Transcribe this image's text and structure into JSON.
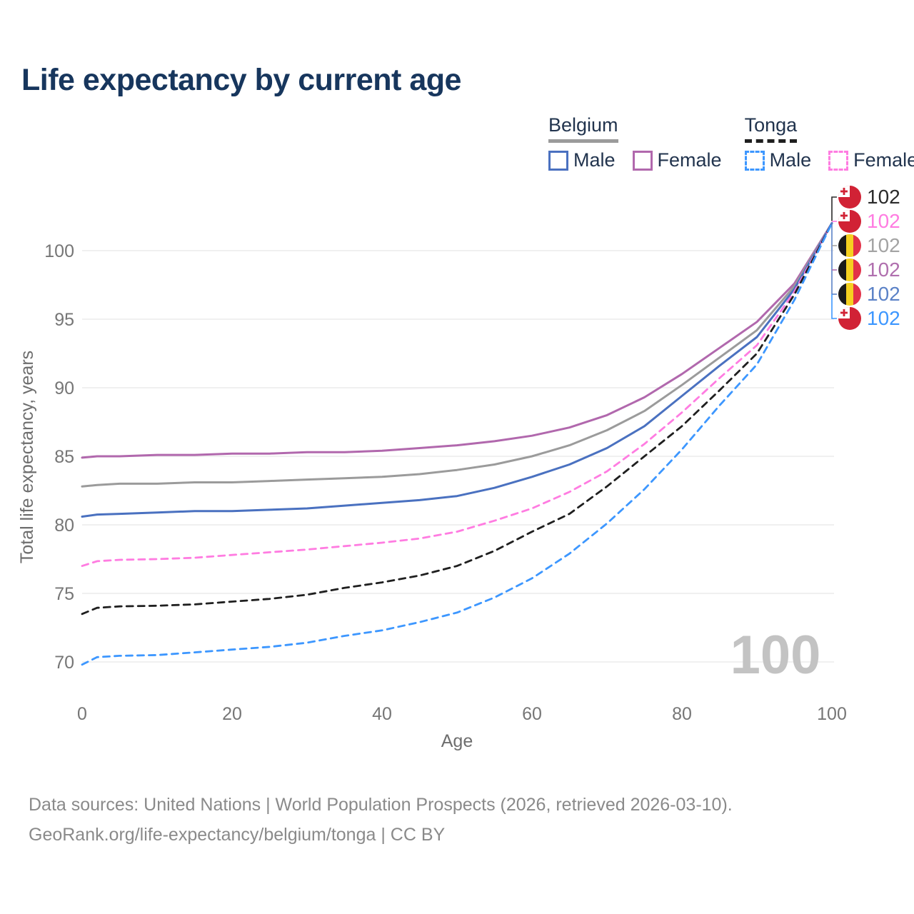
{
  "title": "Life expectancy by current age",
  "legend": {
    "groups": [
      {
        "label": "Belgium",
        "underline_color": "#9b9b9b",
        "underline_style": "solid",
        "items": [
          {
            "label": "Male",
            "color": "#4a71c0",
            "dashed": false
          },
          {
            "label": "Female",
            "color": "#b168ad",
            "dashed": false
          }
        ]
      },
      {
        "label": "Tonga",
        "underline_color": "#1f1f1f",
        "underline_style": "dashed",
        "items": [
          {
            "label": "Male",
            "color": "#3d97ff",
            "dashed": true
          },
          {
            "label": "Female",
            "color": "#ff7ce1",
            "dashed": true
          }
        ]
      }
    ]
  },
  "chart_data": {
    "type": "line",
    "title": "Life expectancy by current age",
    "xlabel": "Age",
    "ylabel": "Total life expectancy, years",
    "xlim": [
      0,
      100
    ],
    "ylim": [
      68,
      103
    ],
    "grid": "horizontal",
    "legend_position": "top-right",
    "xticks": [
      0,
      20,
      40,
      60,
      80,
      100
    ],
    "yticks": [
      100,
      95,
      90,
      85,
      80,
      75,
      70
    ],
    "x": [
      0,
      2,
      5,
      10,
      15,
      20,
      25,
      30,
      35,
      40,
      45,
      50,
      55,
      60,
      65,
      70,
      75,
      80,
      85,
      90,
      95,
      100
    ],
    "series": [
      {
        "name": "Belgium Female",
        "country": "Belgium",
        "sex": "Female",
        "color": "#b168ad",
        "dash": "solid",
        "values": [
          84.9,
          85.0,
          85.0,
          85.1,
          85.1,
          85.2,
          85.2,
          85.3,
          85.3,
          85.4,
          85.6,
          85.8,
          86.1,
          86.5,
          87.1,
          88.0,
          89.3,
          91.0,
          92.9,
          94.8,
          97.6,
          102
        ]
      },
      {
        "name": "Belgium Both sexes",
        "country": "Belgium",
        "sex": "Both",
        "color": "#9b9b9b",
        "dash": "solid",
        "values": [
          82.8,
          82.9,
          83.0,
          83.0,
          83.1,
          83.1,
          83.2,
          83.3,
          83.4,
          83.5,
          83.7,
          84.0,
          84.4,
          85.0,
          85.8,
          86.9,
          88.3,
          90.2,
          92.2,
          94.2,
          97.4,
          102
        ]
      },
      {
        "name": "Belgium Male",
        "country": "Belgium",
        "sex": "Male",
        "color": "#4a71c0",
        "dash": "solid",
        "values": [
          80.6,
          80.75,
          80.8,
          80.9,
          81.0,
          81.0,
          81.1,
          81.2,
          81.4,
          81.6,
          81.8,
          82.1,
          82.7,
          83.5,
          84.4,
          85.6,
          87.2,
          89.4,
          91.6,
          93.7,
          97.2,
          102
        ]
      },
      {
        "name": "Tonga Female",
        "country": "Tonga",
        "sex": "Female",
        "color": "#ff7ce1",
        "dash": "dashed",
        "values": [
          77.0,
          77.35,
          77.45,
          77.5,
          77.6,
          77.8,
          78.0,
          78.2,
          78.45,
          78.7,
          79.0,
          79.5,
          80.3,
          81.2,
          82.4,
          83.9,
          85.9,
          88.2,
          90.7,
          93.1,
          97.0,
          102
        ]
      },
      {
        "name": "Tonga Both sexes",
        "country": "Tonga",
        "sex": "Both",
        "color": "#1f1f1f",
        "dash": "dashed",
        "values": [
          73.5,
          73.95,
          74.05,
          74.1,
          74.2,
          74.4,
          74.6,
          74.9,
          75.4,
          75.8,
          76.3,
          77.0,
          78.1,
          79.5,
          80.8,
          82.8,
          85.0,
          87.2,
          89.8,
          92.5,
          96.8,
          102
        ]
      },
      {
        "name": "Tonga Male",
        "country": "Tonga",
        "sex": "Male",
        "color": "#3d97ff",
        "dash": "dashed",
        "values": [
          69.8,
          70.35,
          70.45,
          70.5,
          70.7,
          70.9,
          71.1,
          71.4,
          71.9,
          72.3,
          72.9,
          73.6,
          74.7,
          76.1,
          77.9,
          80.1,
          82.6,
          85.5,
          88.7,
          91.7,
          96.4,
          102
        ]
      }
    ],
    "end_labels": [
      {
        "series": "Tonga Both sexes",
        "country": "Tonga",
        "value": "102",
        "color": "#2b2b2b"
      },
      {
        "series": "Tonga Female",
        "country": "Tonga",
        "value": "102",
        "color": "#ff7ce1"
      },
      {
        "series": "Belgium Both sexes",
        "country": "Belgium",
        "value": "102",
        "color": "#a3a3a3"
      },
      {
        "series": "Belgium Female",
        "country": "Belgium",
        "value": "102",
        "color": "#b06fae"
      },
      {
        "series": "Belgium Male",
        "country": "Belgium",
        "value": "102",
        "color": "#5b82c7"
      },
      {
        "series": "Tonga Male",
        "country": "Tonga",
        "value": "102",
        "color": "#3d97ff"
      }
    ],
    "watermark": "100"
  },
  "footer": {
    "line1": "Data sources: United Nations | World Population Prospects (2026, retrieved 2026-03-10).",
    "line2": "GeoRank.org/life-expectancy/belgium/tonga | CC BY"
  }
}
